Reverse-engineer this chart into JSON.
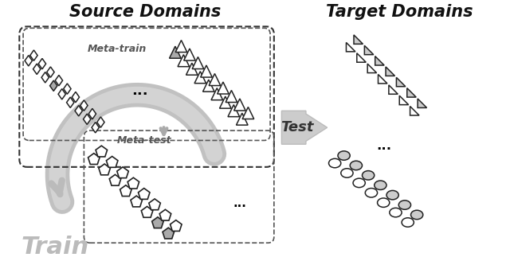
{
  "title_source": "Source Domains",
  "title_target": "Target Domains",
  "label_meta_train": "Meta-train",
  "label_meta_test": "Meta-test",
  "label_train": "Train",
  "label_test": "Test",
  "dots": "...",
  "bg_color": "#ffffff",
  "shape_white": "#ffffff",
  "shape_edge": "#222222",
  "gray_fill": "#aaaaaa",
  "light_gray": "#cccccc",
  "arrow_gray": "#bbbbbb",
  "text_gray": "#999999",
  "box_dash_color": "#555555",
  "title_color": "#111111",
  "train_text_color": "#bbbbbb"
}
